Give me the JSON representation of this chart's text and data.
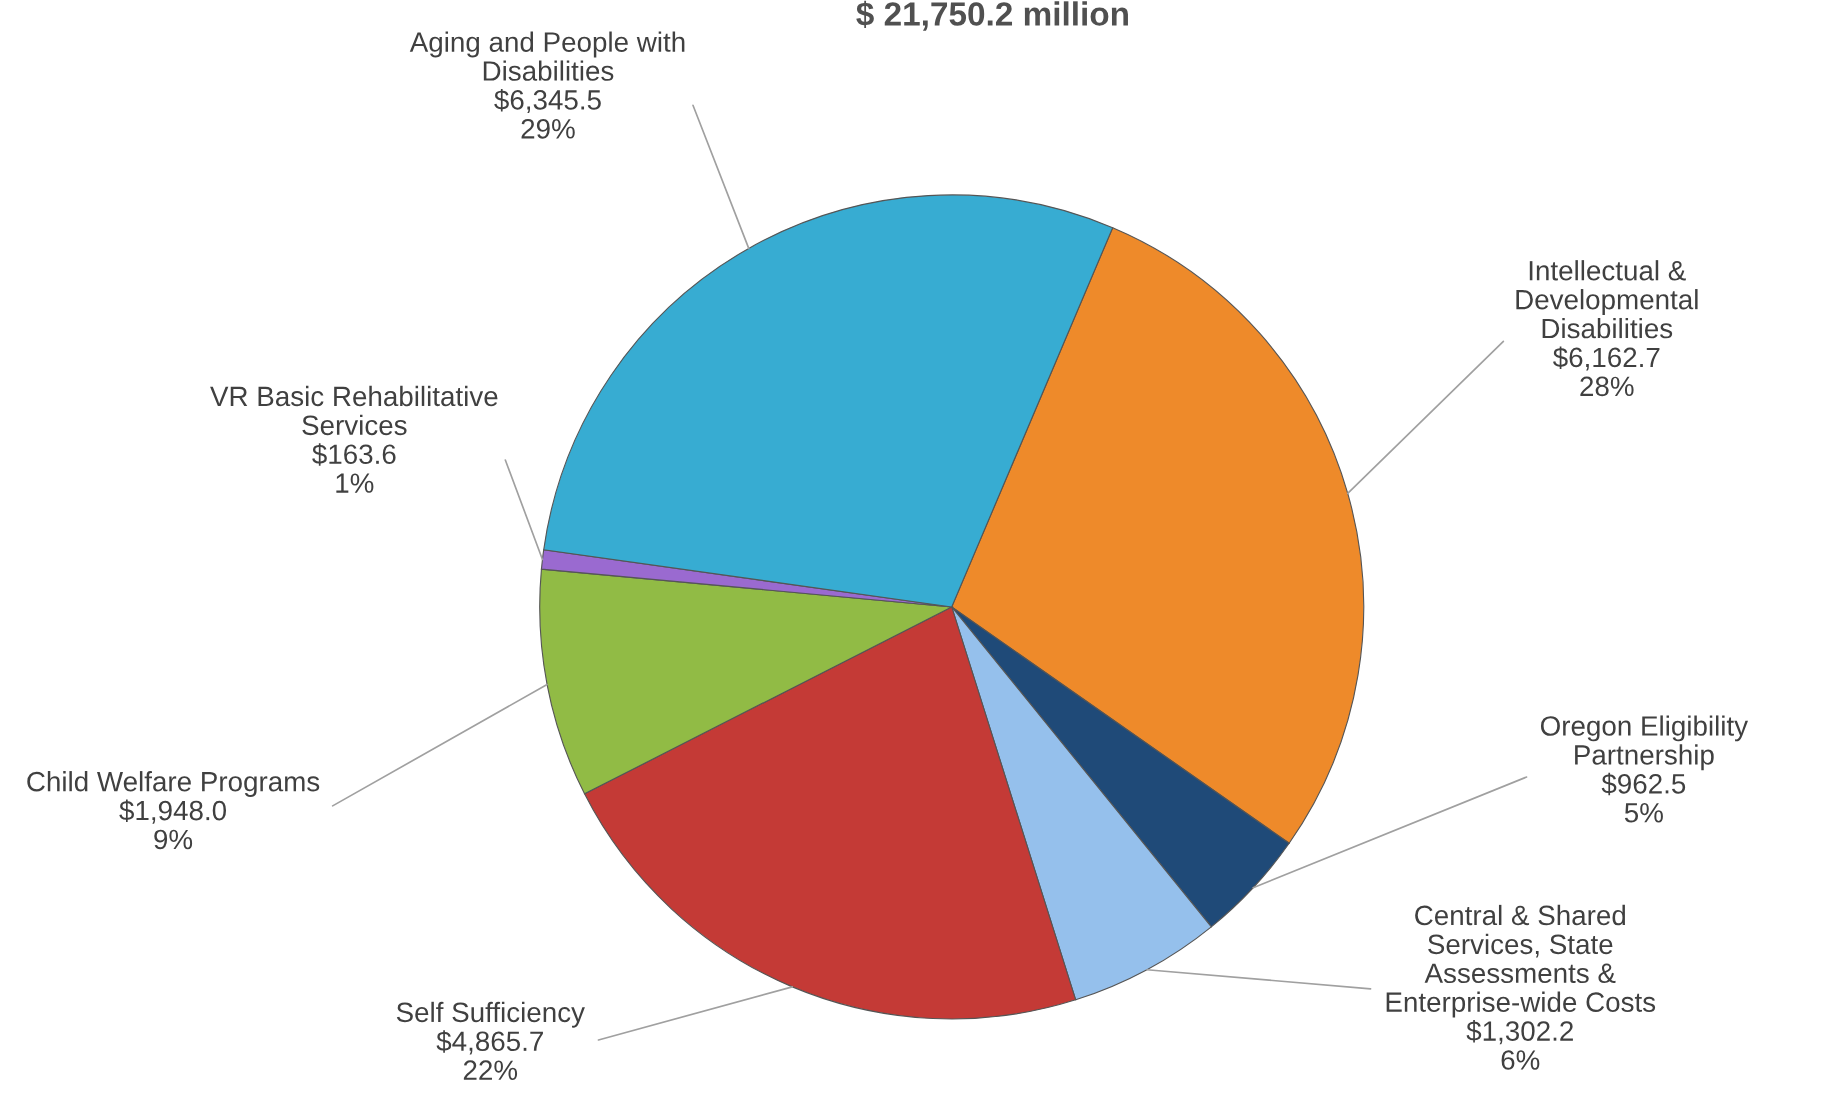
{
  "chart_data": {
    "type": "pie",
    "title": "$ 21,750.2 million",
    "categories": [
      "Intellectual &\nDevelopmental\nDisabilities",
      "Oregon Eligibility\nPartnership",
      "Central & Shared\nServices, State\nAssessments &\nEnterprise-wide Costs",
      "Self Sufficiency",
      "Child Welfare Programs",
      "VR Basic Rehabilitative\nServices",
      "Aging and People with\nDisabilities"
    ],
    "values": [
      6162.7,
      962.5,
      1302.2,
      4865.7,
      1948.0,
      163.6,
      6345.5
    ],
    "value_labels": [
      "$6,162.7\n28%",
      "$962.5\n5%",
      "$1,302.2\n6%",
      "$4,865.7\n22%",
      "$1,948.0\n9%",
      "$163.6\n1%",
      "$6,345.5\n29%"
    ],
    "colors": [
      "#ee8a2a",
      "#1f4a78",
      "#95c0ec",
      "#c43a36",
      "#91bb45",
      "#9a6ad0",
      "#37acd2"
    ],
    "legend": false
  }
}
